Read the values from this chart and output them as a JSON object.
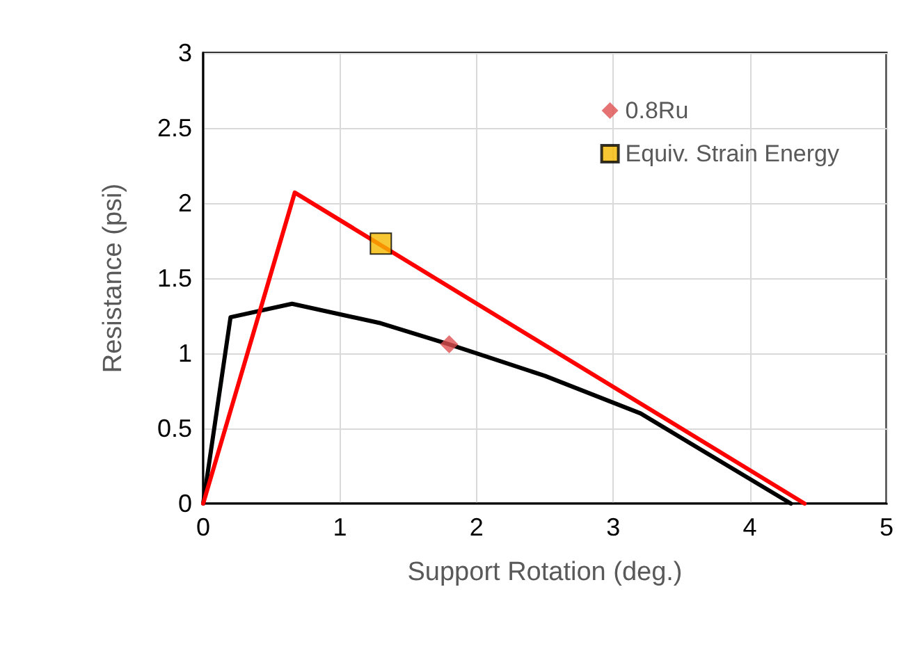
{
  "chart_data": {
    "type": "line",
    "xlabel": "Support Rotation (deg.)",
    "ylabel": "Resistance (psi)",
    "xlim": [
      0,
      5
    ],
    "xticks": [
      0,
      1,
      2,
      3,
      4,
      5
    ],
    "ylim": [
      0,
      3
    ],
    "yticks": [
      0,
      0.5,
      1,
      1.5,
      2,
      2.5,
      3
    ],
    "grid": true,
    "legend": "top right",
    "series": [
      {
        "color": "#000000",
        "marker": "none",
        "x": [
          0,
          0.2,
          0.65,
          1.3,
          1.8,
          2.5,
          3.2,
          4.3
        ],
        "values": [
          0,
          1.24,
          1.33,
          1.2,
          1.06,
          0.85,
          0.6,
          0
        ]
      },
      {
        "color": "#ff0000",
        "marker": "none",
        "x": [
          0,
          0.67,
          4.4
        ],
        "values": [
          0,
          2.07,
          0
        ]
      },
      {
        "type": "scatter",
        "name": "0.8Ru",
        "color": "#e05050",
        "marker": "diamond",
        "x": [
          1.8
        ],
        "values": [
          1.06
        ]
      },
      {
        "type": "scatter",
        "name": "Equiv. Strain Energy",
        "color": "#f5b800",
        "marker": "square",
        "x": [
          1.3
        ],
        "values": [
          1.73
        ]
      }
    ]
  }
}
